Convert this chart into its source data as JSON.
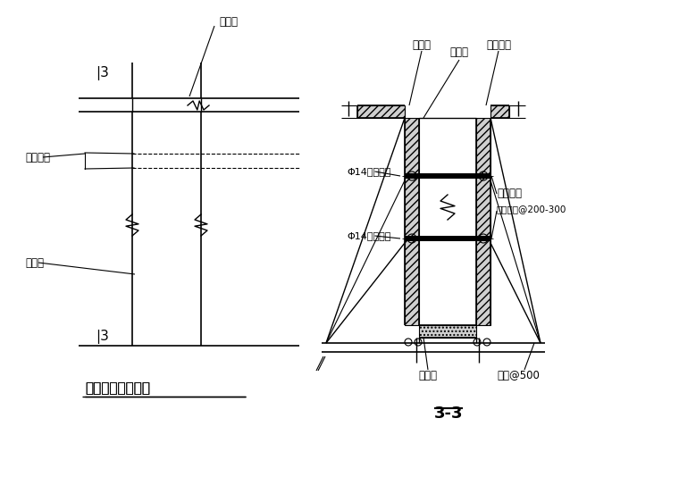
{
  "bg_color": "#ffffff",
  "line_color": "#000000",
  "title_left": "梁板交接处模板图",
  "title_right": "3-3",
  "label_banmo_top": "楼模板",
  "label_liangmo_ban": "梁侧模板",
  "label_banmo_bot": "楼模板",
  "label_liangmo": "梁侧模",
  "label_jiagu_fangmu": "加固方木",
  "label_liangceban_r": "梁侧模板",
  "label_jiagu_fangmu2": "加固方木@200-300",
  "label_phi14_1": "Φ14对拉螺全",
  "label_phi14_2": "Φ14对拉螺全",
  "label_liangdimo": "梁底模",
  "label_xiaozhang": "销筋@500"
}
